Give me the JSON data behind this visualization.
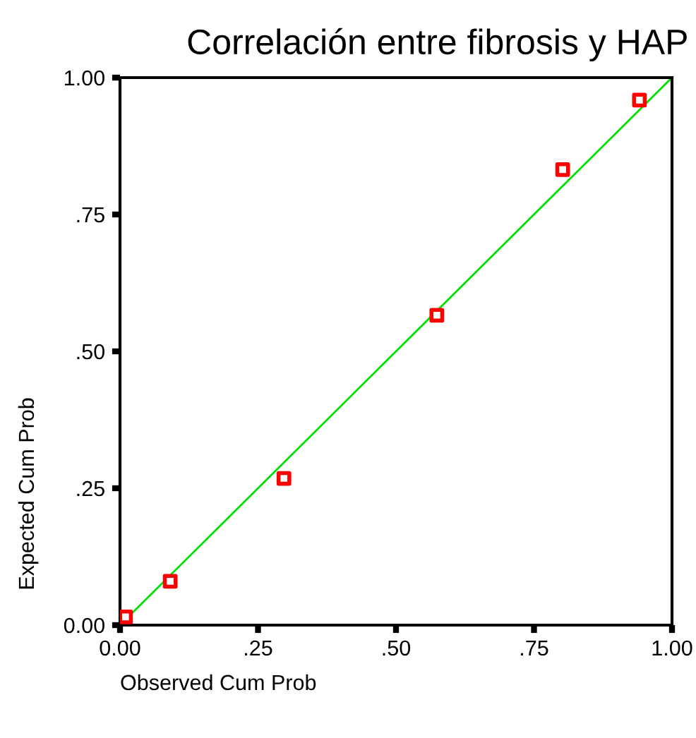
{
  "chart_data": {
    "type": "scatter",
    "title": "Correlación entre fibrosis y HAP",
    "xlabel": "Observed Cum Prob",
    "ylabel": "Expected Cum Prob",
    "xlim": [
      0,
      1
    ],
    "ylim": [
      0,
      1
    ],
    "xticks": [
      {
        "value": 0,
        "label": "0.00"
      },
      {
        "value": 0.25,
        "label": ".25"
      },
      {
        "value": 0.5,
        "label": ".50"
      },
      {
        "value": 0.75,
        "label": ".75"
      },
      {
        "value": 1,
        "label": "1.00"
      }
    ],
    "yticks": [
      {
        "value": 0,
        "label": "0.00"
      },
      {
        "value": 0.25,
        "label": ".25"
      },
      {
        "value": 0.5,
        "label": ".50"
      },
      {
        "value": 0.75,
        "label": ".75"
      },
      {
        "value": 1,
        "label": "1.00"
      }
    ],
    "grid": false,
    "marker": "square",
    "series": [
      {
        "type": "line",
        "color": "#00e000",
        "x": [
          0,
          1
        ],
        "values": [
          0,
          1
        ],
        "marker": "none"
      },
      {
        "color": "#ff0000",
        "x": [
          0.01,
          0.091,
          0.297,
          0.574,
          0.802,
          0.941
        ],
        "values": [
          0.015,
          0.08,
          0.268,
          0.566,
          0.832,
          0.959
        ]
      }
    ]
  }
}
